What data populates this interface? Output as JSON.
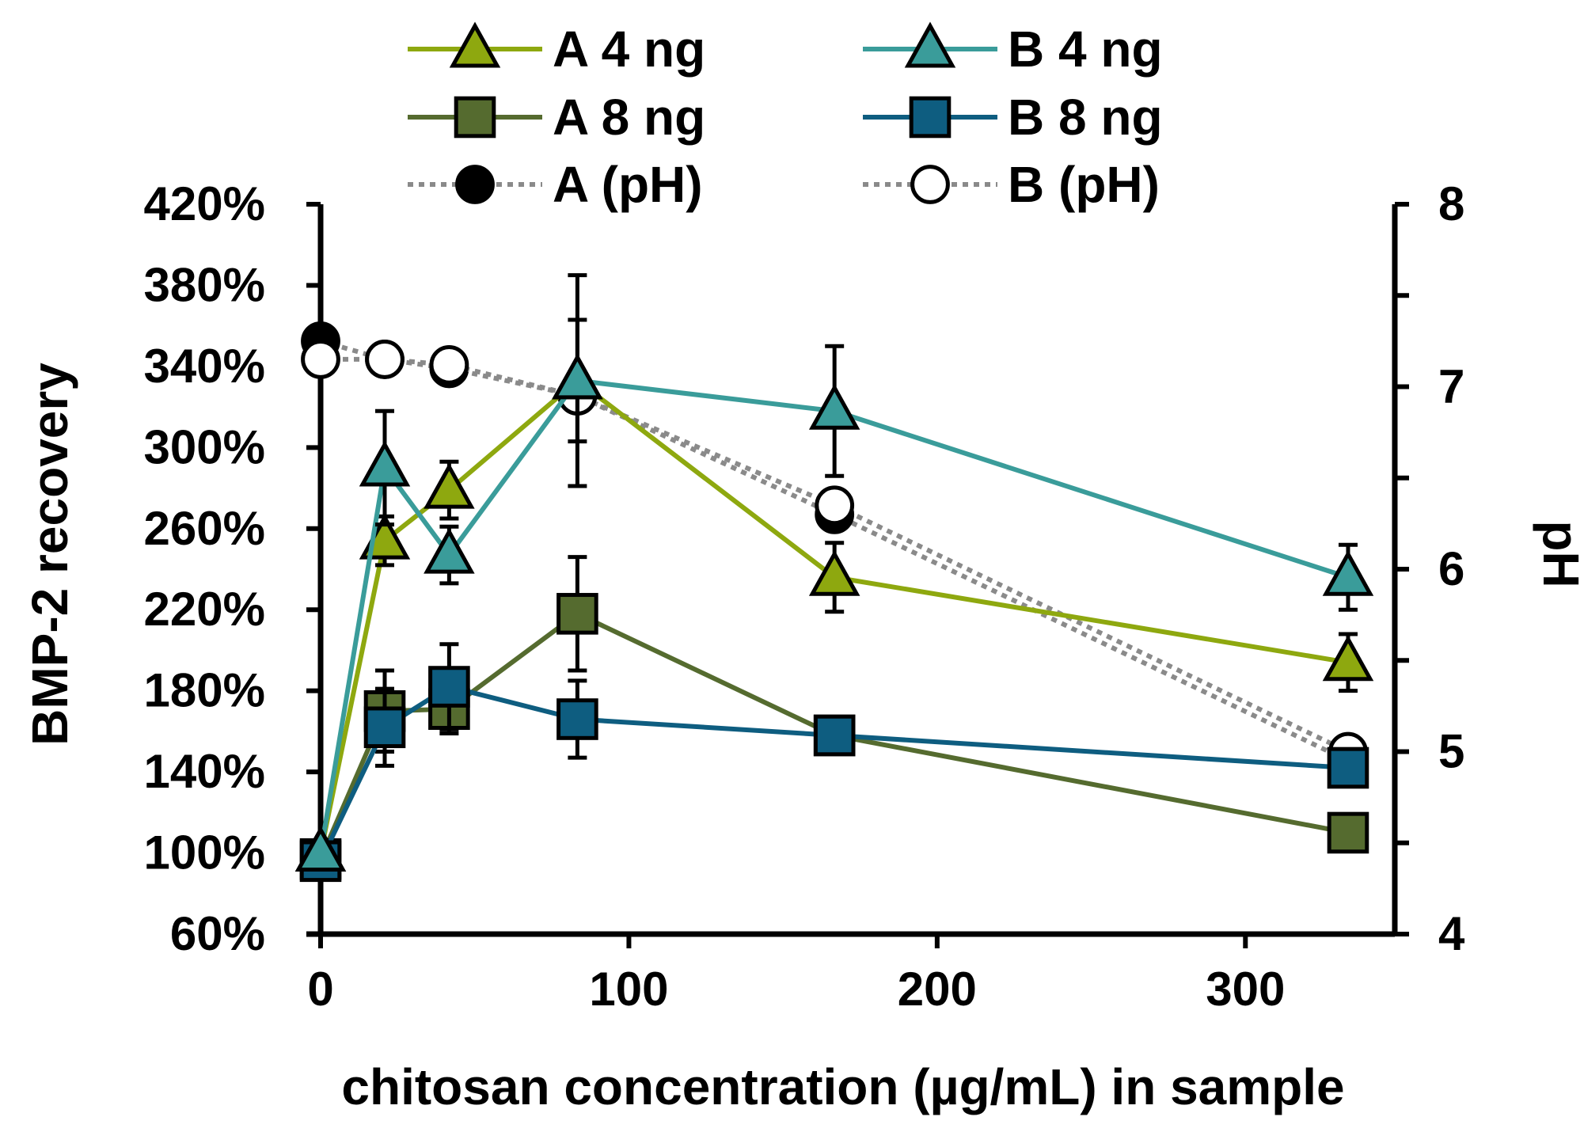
{
  "chart_data": {
    "type": "line",
    "xlabel": "chitosan concentration (µg/mL) in sample",
    "ylabel": "BMP-2 recovery",
    "y2label": "pH",
    "xlim": [
      0,
      350
    ],
    "ylim": [
      60,
      420
    ],
    "y2lim": [
      4,
      8
    ],
    "x_ticks": [
      0,
      100,
      200,
      300
    ],
    "x_tick_labels": [
      "0",
      "100",
      "200",
      "300"
    ],
    "y_ticks": [
      60,
      100,
      140,
      180,
      220,
      260,
      300,
      340,
      380,
      420
    ],
    "y_tick_labels": [
      "60%",
      "100%",
      "140%",
      "180%",
      "220%",
      "260%",
      "300%",
      "340%",
      "380%",
      "420%"
    ],
    "y2_ticks": [
      4,
      5,
      6,
      7,
      8
    ],
    "y2_tick_labels": [
      "4",
      "5",
      "6",
      "7",
      "8"
    ],
    "legend_position": "top",
    "series": [
      {
        "name": "A 4 ng",
        "axis": "left",
        "marker": "triangle",
        "color": "#8ea80f",
        "line": "solid",
        "x": [
          0,
          20.8,
          41.7,
          83.3,
          166.7,
          333.3
        ],
        "y": [
          100,
          254,
          279,
          333,
          236,
          194
        ],
        "err": [
          0,
          12,
          14,
          52,
          17,
          14
        ]
      },
      {
        "name": "B 4 ng",
        "axis": "left",
        "marker": "triangle",
        "color": "#3a9c9a",
        "line": "solid",
        "x": [
          0,
          20.8,
          41.7,
          83.3,
          166.7,
          333.3
        ],
        "y": [
          100,
          290,
          247,
          333,
          318,
          236
        ],
        "err": [
          0,
          28,
          14,
          30,
          32,
          16
        ]
      },
      {
        "name": "A 8 ng",
        "axis": "left",
        "marker": "square",
        "color": "#556b2f",
        "line": "solid",
        "x": [
          0,
          20.8,
          41.7,
          83.3,
          166.7,
          333.3
        ],
        "y": [
          97,
          170,
          171,
          218,
          158,
          110
        ],
        "err": [
          0,
          20,
          12,
          28,
          5,
          8
        ]
      },
      {
        "name": "B 8 ng",
        "axis": "left",
        "marker": "square",
        "color": "#0e5d80",
        "line": "solid",
        "x": [
          0,
          20.8,
          41.7,
          83.3,
          166.7,
          333.3
        ],
        "y": [
          96,
          162,
          182,
          166,
          158,
          142
        ],
        "err": [
          0,
          19,
          21,
          19,
          5,
          6
        ]
      },
      {
        "name": "A (pH)",
        "axis": "right",
        "marker": "circle-filled",
        "color": "#000000",
        "line": "dotted",
        "x": [
          0,
          20.8,
          41.7,
          83.3,
          166.7,
          333.3
        ],
        "y": [
          7.25,
          7.15,
          7.1,
          6.95,
          6.3,
          4.95
        ]
      },
      {
        "name": "B (pH)",
        "axis": "right",
        "marker": "circle-open",
        "color": "#000000",
        "line": "dotted",
        "x": [
          0,
          20.8,
          41.7,
          83.3,
          166.7,
          333.3
        ],
        "y": [
          7.15,
          7.15,
          7.12,
          6.95,
          6.35,
          5.0
        ]
      }
    ]
  }
}
